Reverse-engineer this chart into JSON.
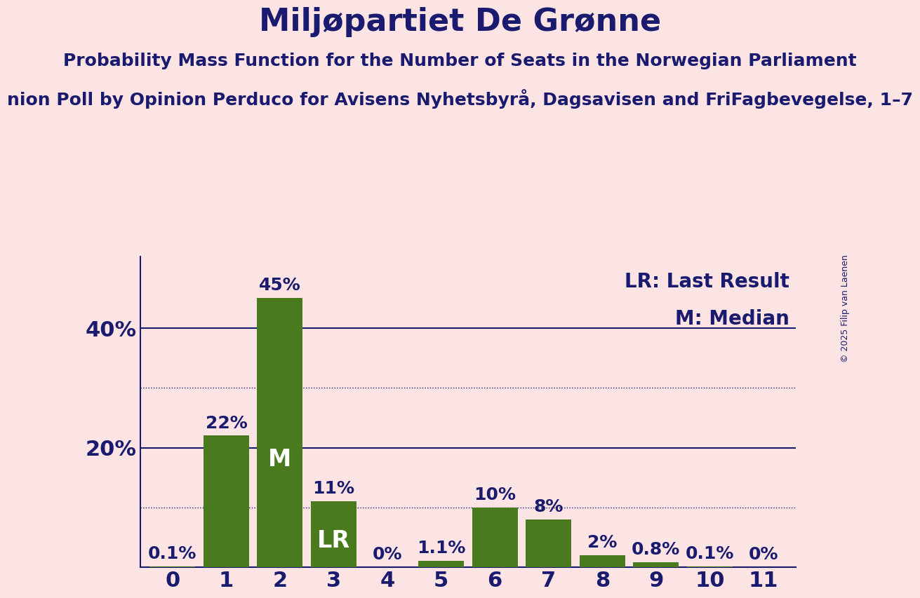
{
  "title": "Miljøpartiet De Grønne",
  "subtitle1": "Probability Mass Function for the Number of Seats in the Norwegian Parliament",
  "subtitle2": "nion Poll by Opinion Perduco for Avisens Nyhetsbyrå, Dagsavisen and FriFagbevegelse, 1–7",
  "copyright": "© 2025 Filip van Laenen",
  "categories": [
    0,
    1,
    2,
    3,
    4,
    5,
    6,
    7,
    8,
    9,
    10,
    11
  ],
  "values": [
    0.1,
    22,
    45,
    11,
    0,
    1.1,
    10,
    8,
    2,
    0.8,
    0.1,
    0
  ],
  "bar_color": "#4a7a1e",
  "background_color": "#fce4e4",
  "text_color": "#1a1a6e",
  "label_texts": [
    "0.1%",
    "22%",
    "45%",
    "11%",
    "0%",
    "1.1%",
    "10%",
    "8%",
    "2%",
    "0.8%",
    "0.1%",
    "0%"
  ],
  "median_bar": 2,
  "lr_bar": 3,
  "median_label": "M",
  "lr_label": "LR",
  "legend_lr": "LR: Last Result",
  "legend_m": "M: Median",
  "ytick_positions": [
    20,
    40
  ],
  "ytick_labels": [
    "20%",
    "40%"
  ],
  "solid_gridlines": [
    20,
    40
  ],
  "dotted_gridlines": [
    10,
    30
  ],
  "ylim": [
    0,
    52
  ],
  "title_fontsize": 32,
  "subtitle_fontsize": 18,
  "label_fontsize": 18,
  "axis_fontsize": 22,
  "legend_fontsize": 20,
  "inside_label_fontsize": 24,
  "copyright_fontsize": 9
}
